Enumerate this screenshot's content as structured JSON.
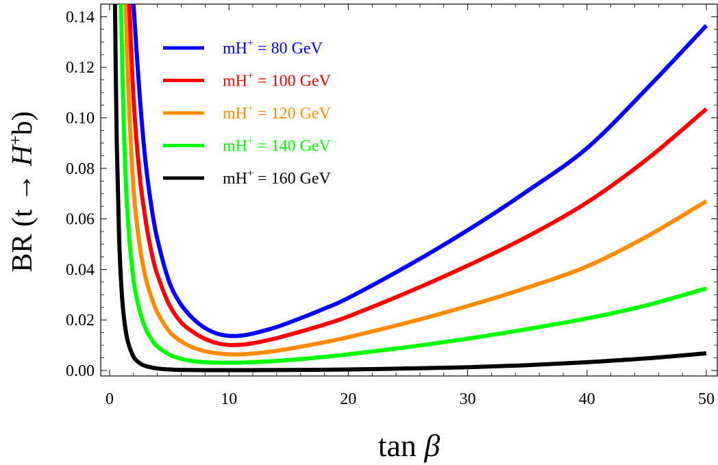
{
  "chart_data": {
    "type": "line",
    "title": "",
    "xlabel": {
      "pre": "tan ",
      "sym": "β"
    },
    "ylabel": {
      "pre": "BR (t → ",
      "sym": "H",
      "sup": "+",
      "post": "b)"
    },
    "xlim": [
      0,
      50
    ],
    "ylim": [
      0,
      0.145
    ],
    "x_ticks": [
      "0",
      "10",
      "20",
      "30",
      "40",
      "50"
    ],
    "y_ticks": [
      "0.00",
      "0.02",
      "0.04",
      "0.06",
      "0.08",
      "0.10",
      "0.12",
      "0.14"
    ],
    "grid": false,
    "legend_position": "top-left",
    "series": [
      {
        "name": "mH+ = 80 GeV",
        "legend": {
          "pre": "mH",
          "sup": "+",
          "post": " = 80 GeV"
        },
        "color": "#0000ff",
        "x": [
          2.0,
          2.5,
          3,
          3.5,
          4,
          5,
          6,
          7,
          8,
          9,
          10,
          11,
          12,
          14,
          16,
          18,
          20,
          25,
          30,
          35,
          40,
          45,
          50
        ],
        "y": [
          0.145,
          0.11,
          0.083,
          0.065,
          0.052,
          0.035,
          0.026,
          0.0205,
          0.0168,
          0.0146,
          0.0137,
          0.0138,
          0.0146,
          0.0172,
          0.0207,
          0.0245,
          0.0287,
          0.0415,
          0.0555,
          0.071,
          0.088,
          0.1115,
          0.1365
        ]
      },
      {
        "name": "mH+ = 100 GeV",
        "legend": {
          "pre": "mH",
          "sup": "+",
          "post": " = 100 GeV"
        },
        "color": "#ff0000",
        "x": [
          1.65,
          2,
          2.5,
          3,
          3.5,
          4,
          5,
          6,
          7,
          8,
          9,
          10,
          11,
          12,
          14,
          16,
          18,
          20,
          25,
          30,
          35,
          40,
          45,
          50
        ],
        "y": [
          0.145,
          0.108,
          0.078,
          0.06,
          0.047,
          0.038,
          0.026,
          0.019,
          0.0152,
          0.0125,
          0.0108,
          0.0101,
          0.0102,
          0.0108,
          0.0128,
          0.0154,
          0.0182,
          0.0214,
          0.031,
          0.0415,
          0.053,
          0.0665,
          0.0835,
          0.1035
        ]
      },
      {
        "name": "mH+ = 120 GeV",
        "legend": {
          "pre": "mH",
          "sup": "+",
          "post": " = 120 GeV"
        },
        "color": "#ff8c00",
        "x": [
          1.35,
          1.6,
          2,
          2.5,
          3,
          3.5,
          4,
          5,
          6,
          7,
          8,
          9,
          10,
          11,
          12,
          14,
          16,
          18,
          20,
          25,
          30,
          35,
          40,
          45,
          50
        ],
        "y": [
          0.145,
          0.108,
          0.072,
          0.05,
          0.037,
          0.029,
          0.023,
          0.0155,
          0.0115,
          0.0091,
          0.0076,
          0.0068,
          0.0064,
          0.0064,
          0.0067,
          0.0078,
          0.0094,
          0.0112,
          0.0132,
          0.019,
          0.0255,
          0.0328,
          0.0412,
          0.053,
          0.067
        ]
      },
      {
        "name": "mH+ = 140 GeV",
        "legend": {
          "pre": "mH",
          "sup": "+",
          "post": " = 140 GeV"
        },
        "color": "#00ff00",
        "x": [
          0.95,
          1.2,
          1.5,
          2,
          2.5,
          3,
          3.5,
          4,
          5,
          6,
          7,
          8,
          9,
          10,
          11,
          12,
          14,
          16,
          18,
          20,
          25,
          30,
          35,
          40,
          45,
          50
        ],
        "y": [
          0.145,
          0.095,
          0.062,
          0.036,
          0.024,
          0.0168,
          0.0124,
          0.0095,
          0.0063,
          0.0046,
          0.0037,
          0.0033,
          0.0031,
          0.0031,
          0.0031,
          0.0033,
          0.0038,
          0.0045,
          0.0054,
          0.0064,
          0.0093,
          0.0126,
          0.0164,
          0.0206,
          0.0258,
          0.0325
        ]
      },
      {
        "name": "mH+ = 160 GeV",
        "legend": {
          "pre": "mH",
          "sup": "+",
          "post": " = 160 GeV"
        },
        "color": "#000000",
        "x": [
          0.45,
          0.6,
          0.8,
          1.0,
          1.2,
          1.5,
          2,
          2.5,
          3,
          4,
          5,
          6,
          8,
          10,
          12,
          15,
          20,
          25,
          30,
          35,
          40,
          45,
          50
        ],
        "y": [
          0.145,
          0.09,
          0.052,
          0.032,
          0.021,
          0.012,
          0.0055,
          0.003,
          0.0018,
          0.0008,
          0.0004,
          0.00025,
          0.00015,
          0.00012,
          0.00015,
          0.0002,
          0.0004,
          0.0008,
          0.0013,
          0.0021,
          0.0033,
          0.0048,
          0.0068
        ]
      }
    ]
  }
}
